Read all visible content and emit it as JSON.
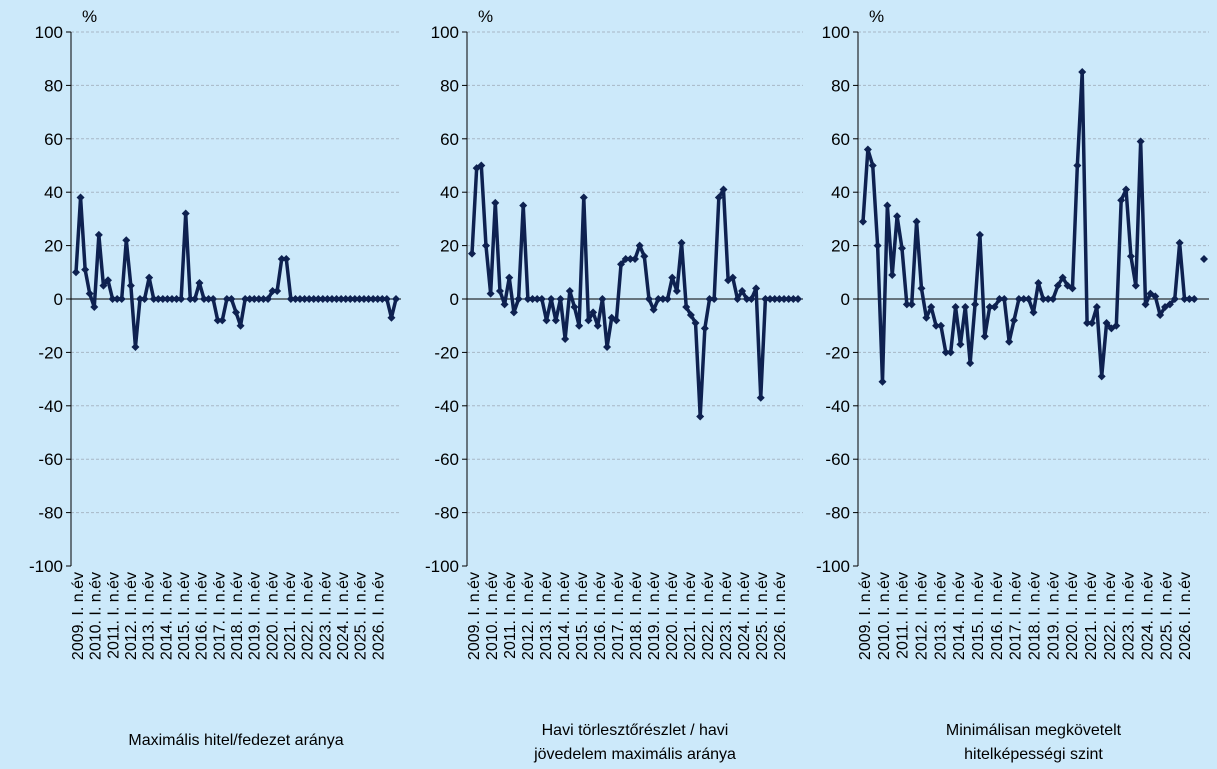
{
  "chart_data": [
    {
      "type": "line",
      "unit_label": "%",
      "caption": [
        "Maximális hitel/fedezet aránya"
      ],
      "ylim": [
        -100,
        100
      ],
      "yticks": [
        100,
        80,
        60,
        40,
        20,
        0,
        -20,
        -40,
        -60,
        -80,
        -100
      ],
      "xtick_labels": [
        "2009. I. n.év",
        "2010. I. n.év",
        "2011. I. n.év",
        "2012. I. n.év",
        "2013. I. n.év",
        "2014. I. n.év",
        "2015. I. n.év",
        "2016. I. n.év",
        "2017. I. n.év",
        "2018. I. n.év",
        "2019. I. n.év",
        "2020. I. n.év",
        "2021. I. n.év",
        "2022. I. n.év",
        "2023. I. n.év",
        "2024. I. n.év",
        "2025. I. n.év",
        "2026. I. n.év"
      ],
      "grid": true,
      "values": [
        10,
        38,
        11,
        2,
        -3,
        24,
        5,
        7,
        0,
        0,
        0,
        22,
        5,
        -18,
        0,
        0,
        8,
        0,
        0,
        0,
        0,
        0,
        0,
        0,
        32,
        0,
        0,
        6,
        0,
        0,
        0,
        -8,
        -8,
        0,
        0,
        -5,
        -10,
        0,
        0,
        0,
        0,
        0,
        0,
        3,
        3,
        15,
        15,
        0,
        0,
        0,
        0,
        0,
        0,
        0,
        0,
        0,
        0,
        0,
        0,
        0,
        0,
        0,
        0,
        0,
        0,
        0,
        0,
        0,
        0,
        -7,
        0
      ]
    },
    {
      "type": "line",
      "unit_label": "%",
      "caption": [
        "Havi törlesztőrészlet / havi",
        "jövedelem maximális aránya"
      ],
      "ylim": [
        -100,
        100
      ],
      "yticks": [
        100,
        80,
        60,
        40,
        20,
        0,
        -20,
        -40,
        -60,
        -80,
        -100
      ],
      "xtick_labels": [
        "2009. I. n.év",
        "2010. I. n.év",
        "2011. I. n.év",
        "2012. I. n.év",
        "2013. I. n.év",
        "2014. I. n.év",
        "2015. I. n.év",
        "2016. I. n.év",
        "2017. I. n.év",
        "2018. I. n.év",
        "2019. I. n.év",
        "2020. I. n.év",
        "2021. I. n.év",
        "2022. I. n.év",
        "2023. I. n.év",
        "2024. I. n.év",
        "2025. I. n.év",
        "2026. I. n.év"
      ],
      "grid": true,
      "values": [
        17,
        49,
        50,
        20,
        2,
        36,
        3,
        -2,
        8,
        -5,
        0,
        35,
        0,
        0,
        0,
        0,
        -8,
        0,
        -8,
        0,
        -15,
        3,
        -3,
        -10,
        38,
        -8,
        -5,
        -10,
        0,
        -18,
        -7,
        -8,
        13,
        15,
        15,
        15,
        20,
        16,
        0,
        -4,
        0,
        0,
        0,
        8,
        3,
        21,
        -3,
        -6,
        -9,
        -44,
        -11,
        0,
        0,
        38,
        41,
        7,
        8,
        0,
        3,
        0,
        0,
        4,
        -37,
        0,
        0,
        0,
        0,
        0,
        0,
        0,
        0
      ]
    },
    {
      "type": "line",
      "unit_label": "%",
      "caption": [
        "Minimálisan megkövetelt",
        "hitelképességi szint"
      ],
      "ylim": [
        -100,
        100
      ],
      "yticks": [
        100,
        80,
        60,
        40,
        20,
        0,
        -20,
        -40,
        -60,
        -80,
        -100
      ],
      "xtick_labels": [
        "2009. I. n.év",
        "2010. I. n.év",
        "2011. I. n.év",
        "2012. I. n.év",
        "2013. I. n.év",
        "2014. I. n.év",
        "2015. I. n.év",
        "2016. I. n.év",
        "2017. I. n.év",
        "2018. I. n.év",
        "2019. I. n.év",
        "2020. I. n.év",
        "2021. I. n.év",
        "2022. I. n.év",
        "2023. I. n.év",
        "2024. I. n.év",
        "2025. I. n.év",
        "2026. I. n.év"
      ],
      "grid": true,
      "values": [
        29,
        56,
        50,
        20,
        -31,
        35,
        9,
        31,
        19,
        -2,
        -2,
        29,
        4,
        -7,
        -3,
        -10,
        -10,
        -20,
        -20,
        -3,
        -17,
        -3,
        -24,
        -2,
        24,
        -14,
        -3,
        -3,
        0,
        0,
        -16,
        -8,
        0,
        0,
        0,
        -5,
        6,
        0,
        0,
        0,
        5,
        8,
        5,
        4,
        50,
        85,
        -9,
        -9,
        -3,
        -29,
        -9,
        -11,
        -10,
        37,
        41,
        16,
        5,
        59,
        -2,
        2,
        1,
        -6,
        -3,
        -2,
        0,
        21,
        0,
        0,
        0,
        null,
        15
      ]
    }
  ]
}
